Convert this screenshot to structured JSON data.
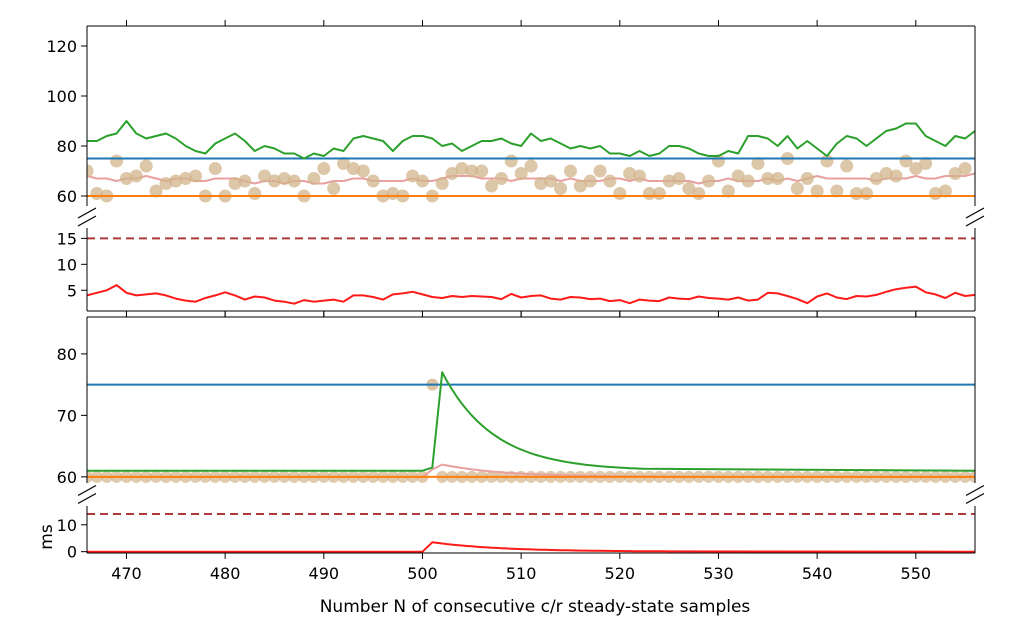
{
  "chart_data": {
    "type": "line",
    "xlabel": "Number N of consecutive c/r steady-state samples",
    "ylabel": "ms",
    "xlim": [
      466,
      556
    ],
    "x_ticks": [
      470,
      480,
      490,
      500,
      510,
      520,
      530,
      540,
      550
    ],
    "colors": {
      "green": "#2ca02c",
      "blue": "#1f77b4",
      "orange": "#ff7f0e",
      "pink": "#e9a0a0",
      "tan": "#d2b48c",
      "dashed": "#b03a3a",
      "red": "#ff1a1a"
    },
    "top_panel": {
      "upper": {
        "ylim": [
          56,
          128
        ],
        "y_ticks": [
          60,
          80,
          100,
          120
        ],
        "blue_level": 75,
        "orange_level": 60,
        "green": [
          82,
          82,
          84,
          85,
          90,
          85,
          83,
          84,
          85,
          83,
          80,
          78,
          77,
          81,
          83,
          85,
          82,
          78,
          80,
          79,
          77,
          77,
          75,
          77,
          76,
          79,
          78,
          83,
          84,
          83,
          82,
          78,
          82,
          84,
          84,
          83,
          80,
          81,
          78,
          80,
          82,
          82,
          83,
          81,
          80,
          85,
          82,
          83,
          81,
          79,
          80,
          79,
          80,
          77,
          77,
          76,
          78,
          76,
          77,
          80,
          80,
          79,
          77,
          76,
          76,
          78,
          77,
          84,
          84,
          83,
          80,
          84,
          79,
          82,
          79,
          76,
          81,
          84,
          83,
          80,
          83,
          86,
          87,
          89,
          89,
          84,
          82,
          80,
          84,
          83,
          86,
          88,
          87,
          85,
          85
        ],
        "pink": [
          68,
          67,
          67,
          66,
          67,
          67,
          68,
          67,
          66,
          67,
          67,
          66,
          66,
          67,
          67,
          67,
          66,
          65,
          66,
          66,
          65,
          66,
          66,
          65,
          65,
          66,
          66,
          67,
          67,
          66,
          66,
          66,
          66,
          67,
          66,
          66,
          67,
          68,
          68,
          68,
          67,
          67,
          67,
          66,
          67,
          67,
          67,
          67,
          66,
          67,
          66,
          66,
          66,
          67,
          67,
          66,
          67,
          66,
          66,
          66,
          66,
          66,
          65,
          66,
          66,
          67,
          66,
          66,
          66,
          67,
          66,
          67,
          66,
          67,
          68,
          67,
          67,
          67,
          67,
          67,
          66,
          67,
          67,
          67,
          68,
          67,
          67,
          68,
          68,
          68,
          69,
          68,
          68,
          68,
          67,
          67
        ],
        "scatter": [
          [
            466,
            70
          ],
          [
            467,
            61
          ],
          [
            468,
            60
          ],
          [
            469,
            74
          ],
          [
            470,
            67
          ],
          [
            471,
            68
          ],
          [
            472,
            72
          ],
          [
            473,
            62
          ],
          [
            474,
            65
          ],
          [
            475,
            66
          ],
          [
            476,
            67
          ],
          [
            477,
            68
          ],
          [
            478,
            60
          ],
          [
            479,
            71
          ],
          [
            480,
            60
          ],
          [
            481,
            65
          ],
          [
            482,
            66
          ],
          [
            483,
            61
          ],
          [
            484,
            68
          ],
          [
            485,
            66
          ],
          [
            486,
            67
          ],
          [
            487,
            66
          ],
          [
            488,
            60
          ],
          [
            489,
            67
          ],
          [
            490,
            71
          ],
          [
            491,
            63
          ],
          [
            492,
            73
          ],
          [
            493,
            71
          ],
          [
            494,
            70
          ],
          [
            495,
            66
          ],
          [
            496,
            60
          ],
          [
            497,
            61
          ],
          [
            498,
            60
          ],
          [
            499,
            68
          ],
          [
            500,
            66
          ],
          [
            501,
            60
          ],
          [
            502,
            65
          ],
          [
            503,
            69
          ],
          [
            504,
            71
          ],
          [
            505,
            70
          ],
          [
            506,
            70
          ],
          [
            507,
            64
          ],
          [
            508,
            67
          ],
          [
            509,
            74
          ],
          [
            510,
            69
          ],
          [
            511,
            72
          ],
          [
            512,
            65
          ],
          [
            513,
            66
          ],
          [
            514,
            63
          ],
          [
            515,
            70
          ],
          [
            516,
            64
          ],
          [
            517,
            66
          ],
          [
            518,
            70
          ],
          [
            519,
            66
          ],
          [
            520,
            61
          ],
          [
            521,
            69
          ],
          [
            522,
            68
          ],
          [
            523,
            61
          ],
          [
            524,
            61
          ],
          [
            525,
            66
          ],
          [
            526,
            67
          ],
          [
            527,
            63
          ],
          [
            528,
            61
          ],
          [
            529,
            66
          ],
          [
            530,
            74
          ],
          [
            531,
            62
          ],
          [
            532,
            68
          ],
          [
            533,
            66
          ],
          [
            534,
            73
          ],
          [
            535,
            67
          ],
          [
            536,
            67
          ],
          [
            537,
            75
          ],
          [
            538,
            63
          ],
          [
            539,
            67
          ],
          [
            540,
            62
          ],
          [
            541,
            74
          ],
          [
            542,
            62
          ],
          [
            543,
            72
          ],
          [
            544,
            61
          ],
          [
            545,
            61
          ],
          [
            546,
            67
          ],
          [
            547,
            69
          ],
          [
            548,
            68
          ],
          [
            549,
            74
          ],
          [
            550,
            71
          ],
          [
            551,
            73
          ],
          [
            552,
            61
          ],
          [
            553,
            62
          ],
          [
            554,
            69
          ],
          [
            555,
            71
          ]
        ]
      },
      "lower": {
        "ylim": [
          1,
          17
        ],
        "y_ticks": [
          5,
          10,
          15
        ],
        "dashed_level": 15,
        "red": [
          4,
          4.5,
          5,
          6,
          4.5,
          4,
          4.2,
          4.4,
          4,
          3.4,
          3,
          2.8,
          3.5,
          4,
          4.6,
          4,
          3.2,
          3.8,
          3.6,
          3,
          2.8,
          2.4,
          3.1,
          2.8,
          3,
          3.2,
          2.8,
          4,
          4,
          3.7,
          3.2,
          4.2,
          4.4,
          4.7,
          4.2,
          3.7,
          3.5,
          3.9,
          3.7,
          3.9,
          3.8,
          3.7,
          3.3,
          4.3,
          3.6,
          3.9,
          4,
          3.4,
          3.2,
          3.7,
          3.6,
          3.3,
          3.4,
          2.9,
          3.1,
          2.5,
          3.2,
          3,
          2.9,
          3.6,
          3.4,
          3.3,
          3.8,
          3.5,
          3.4,
          3.2,
          3.6,
          3,
          3.2,
          4.5,
          4.4,
          3.9,
          3.3,
          2.5,
          3.8,
          4.4,
          3.6,
          3.3,
          3.9,
          3.8,
          4.1,
          4.7,
          5.2,
          5.5,
          5.7,
          4.6,
          4.2,
          3.5,
          4.5,
          3.9,
          4.1,
          4.4,
          5,
          4.9,
          4,
          3.7
        ]
      }
    },
    "bottom_panel": {
      "upper": {
        "ylim": [
          59,
          86
        ],
        "y_ticks": [
          60,
          70,
          80
        ],
        "blue_level": 75,
        "orange_level": 60,
        "green_baseline": 61,
        "green_step_x": [
          500,
          501,
          502
        ],
        "green_step_y": [
          61,
          61.5,
          77
        ],
        "green_decay_to": 522.5,
        "pink_peak": 62,
        "scatter_outlier": [
          501,
          75
        ]
      },
      "lower": {
        "ylim": [
          -0.5,
          17
        ],
        "y_ticks": [
          0,
          10
        ],
        "dashed_level": 14,
        "red_peak_x": 501,
        "red_peak_y": 3.5,
        "red_decay_to": 525
      }
    }
  }
}
